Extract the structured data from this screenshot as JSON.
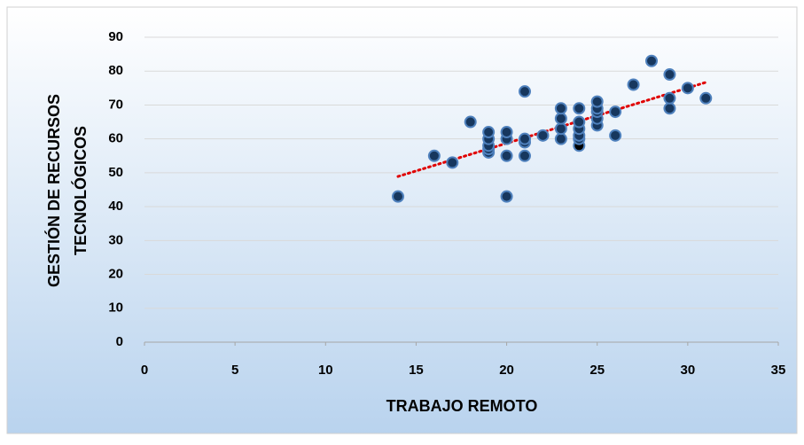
{
  "chart_data": {
    "type": "scatter",
    "xlabel": "TRABAJO REMOTO",
    "ylabel": [
      "GESTIÓN DE RECURSOS",
      "TECNOLÓGICOS"
    ],
    "series": [
      {
        "color": "#17375e",
        "edge_color": "#4f81bd",
        "x": [
          14,
          16,
          17,
          18,
          19,
          19,
          19,
          19,
          19,
          20,
          20,
          20,
          20,
          21,
          21,
          21,
          21,
          22,
          23,
          23,
          23,
          23,
          24,
          24,
          24,
          24,
          24,
          24,
          25,
          25,
          25,
          25,
          25,
          26,
          26,
          27,
          28,
          29,
          29,
          29,
          30,
          31
        ],
        "values": [
          43,
          55,
          53,
          65,
          56,
          57,
          58,
          60,
          62,
          43,
          55,
          60,
          62,
          55,
          59,
          60,
          74,
          61,
          60,
          63,
          66,
          69,
          58,
          60,
          61,
          63,
          65,
          69,
          64,
          66,
          68,
          69,
          71,
          61,
          68,
          76,
          83,
          69,
          72,
          79,
          75,
          72
        ],
        "highlight": {
          "index": 22,
          "color": "#000000"
        }
      }
    ],
    "trendline": {
      "kind": "linear",
      "color": "#e00000"
    },
    "xlim": [
      0,
      35
    ],
    "xticks": [
      0,
      5,
      10,
      15,
      20,
      25,
      30,
      35
    ],
    "ylim": [
      0,
      90
    ],
    "yticks": [
      0,
      10,
      20,
      30,
      40,
      50,
      60,
      70,
      80,
      90
    ],
    "grid": true
  }
}
